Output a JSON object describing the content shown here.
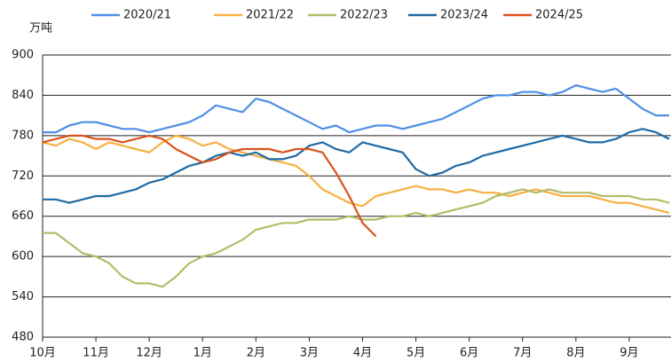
{
  "chart_data": {
    "type": "line",
    "y_label": "万吨",
    "categories": [
      "10月",
      null,
      null,
      null,
      "11月",
      null,
      null,
      null,
      "12月",
      null,
      null,
      null,
      "1月",
      null,
      null,
      null,
      "2月",
      null,
      null,
      null,
      "3月",
      null,
      null,
      null,
      "4月",
      null,
      null,
      null,
      "5月",
      null,
      null,
      null,
      "6月",
      null,
      null,
      null,
      "7月",
      null,
      null,
      null,
      "8月",
      null,
      null,
      null,
      "9月",
      null,
      null,
      null
    ],
    "ylim": [
      480,
      900
    ],
    "yticks": [
      480,
      540,
      600,
      660,
      720,
      780,
      840,
      900
    ],
    "grid": true,
    "legend": "top",
    "series": [
      {
        "name": "2020/21",
        "color": "#4f8fe6",
        "values": [
          785,
          785,
          795,
          800,
          800,
          795,
          790,
          790,
          785,
          790,
          795,
          800,
          810,
          825,
          820,
          815,
          835,
          830,
          820,
          810,
          800,
          790,
          795,
          785,
          790,
          795,
          795,
          790,
          795,
          800,
          805,
          815,
          825,
          835,
          840,
          840,
          845,
          845,
          840,
          845,
          855,
          850,
          845,
          850,
          835,
          820,
          810,
          810
        ]
      },
      {
        "name": "2021/22",
        "color": "#f5b041",
        "values": [
          770,
          765,
          775,
          770,
          760,
          770,
          765,
          760,
          755,
          770,
          780,
          775,
          765,
          770,
          760,
          755,
          750,
          745,
          740,
          735,
          720,
          700,
          690,
          680,
          675,
          690,
          695,
          700,
          705,
          700,
          700,
          695,
          700,
          695,
          695,
          690,
          695,
          700,
          695,
          690,
          690,
          690,
          685,
          680,
          680,
          675,
          670,
          665
        ]
      },
      {
        "name": "2022/23",
        "color": "#b5bb68",
        "values": [
          635,
          635,
          620,
          605,
          600,
          590,
          570,
          560,
          560,
          555,
          570,
          590,
          600,
          605,
          615,
          625,
          640,
          645,
          650,
          650,
          655,
          655,
          655,
          660,
          655,
          655,
          660,
          660,
          665,
          660,
          665,
          670,
          675,
          680,
          690,
          695,
          700,
          695,
          700,
          695,
          695,
          695,
          690,
          690,
          690,
          685,
          685,
          680
        ]
      },
      {
        "name": "2023/24",
        "color": "#1f6aa5",
        "values": [
          685,
          685,
          680,
          685,
          690,
          690,
          695,
          700,
          710,
          715,
          725,
          735,
          740,
          750,
          755,
          750,
          755,
          745,
          745,
          750,
          765,
          770,
          760,
          755,
          770,
          765,
          760,
          755,
          730,
          720,
          725,
          735,
          740,
          750,
          755,
          760,
          765,
          770,
          775,
          780,
          775,
          770,
          770,
          775,
          785,
          790,
          785,
          775
        ]
      },
      {
        "name": "2024/25",
        "color": "#d9531e",
        "values": [
          770,
          775,
          780,
          780,
          775,
          775,
          770,
          775,
          780,
          775,
          760,
          750,
          740,
          745,
          755,
          760,
          760,
          760,
          755,
          760,
          760,
          755,
          725,
          690,
          650,
          630,
          null,
          null,
          null,
          null,
          null,
          null,
          null,
          null,
          null,
          null,
          null,
          null,
          null,
          null,
          null,
          null,
          null,
          null,
          null,
          null,
          null,
          null
        ]
      }
    ]
  }
}
